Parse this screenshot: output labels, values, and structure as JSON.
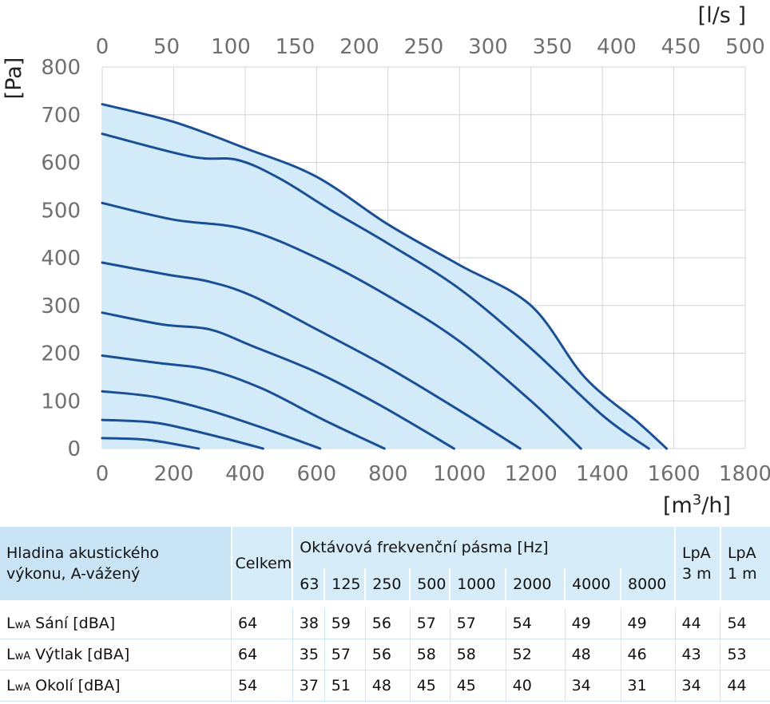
{
  "chart_data": {
    "type": "line",
    "x_axis": {
      "label_text": "[m",
      "label_sup": "3",
      "label_tail": "/h]",
      "range": [
        0,
        1800
      ],
      "ticks": [
        0,
        200,
        400,
        600,
        800,
        1000,
        1200,
        1400,
        1600,
        1800
      ]
    },
    "x2_axis": {
      "label": "[l/s ]",
      "range": [
        0,
        500
      ],
      "ticks": [
        0,
        50,
        100,
        150,
        200,
        250,
        300,
        350,
        400,
        450,
        500
      ]
    },
    "y_axis": {
      "label": "[Pa]",
      "range": [
        0,
        800
      ],
      "ticks": [
        0,
        100,
        200,
        300,
        400,
        500,
        600,
        700,
        800
      ]
    },
    "grid": true,
    "colors": {
      "curve": "#1a4f96",
      "fill": "#d3ebf8",
      "grid": "#d4d4d4"
    },
    "series": [
      {
        "x": [
          0,
          130,
          270
        ],
        "y": [
          22,
          18,
          0
        ]
      },
      {
        "x": [
          0,
          140,
          230,
          350,
          450
        ],
        "y": [
          60,
          55,
          42,
          20,
          0
        ]
      },
      {
        "x": [
          0,
          150,
          300,
          470,
          610
        ],
        "y": [
          120,
          108,
          80,
          38,
          0
        ]
      },
      {
        "x": [
          0,
          150,
          300,
          450,
          620,
          790
        ],
        "y": [
          195,
          180,
          165,
          125,
          60,
          0
        ]
      },
      {
        "x": [
          0,
          170,
          300,
          420,
          600,
          780,
          985
        ],
        "y": [
          285,
          260,
          250,
          215,
          160,
          90,
          0
        ]
      },
      {
        "x": [
          0,
          180,
          300,
          420,
          600,
          800,
          1000,
          1170
        ],
        "y": [
          390,
          365,
          350,
          320,
          250,
          170,
          80,
          0
        ]
      },
      {
        "x": [
          0,
          200,
          400,
          600,
          800,
          1000,
          1200,
          1340
        ],
        "y": [
          515,
          480,
          460,
          400,
          320,
          225,
          100,
          0
        ]
      },
      {
        "x": [
          0,
          250,
          380,
          500,
          640,
          800,
          1000,
          1200,
          1400,
          1530
        ],
        "y": [
          660,
          612,
          605,
          565,
          500,
          430,
          335,
          210,
          70,
          0
        ]
      },
      {
        "x": [
          0,
          200,
          400,
          600,
          800,
          1000,
          1200,
          1350,
          1500,
          1580
        ],
        "y": [
          722,
          685,
          630,
          570,
          470,
          385,
          300,
          150,
          55,
          0
        ]
      }
    ]
  },
  "table": {
    "header": {
      "title": "Hladina akustického výkonu, A-vážený",
      "title_line1": "Hladina akustického",
      "title_line2": "výkonu, A-vážený",
      "total": "Celkem",
      "octave_title": "Oktávová frekvenční pásma [Hz]",
      "bands": [
        "63",
        "125",
        "250",
        "500",
        "1000",
        "2000",
        "4000",
        "8000"
      ],
      "lpa3_line1": "LpA",
      "lpa3_line2": "3 m",
      "lpa1_line1": "LpA",
      "lpa1_line2": "1 m"
    },
    "rows": [
      {
        "prefix": "L",
        "sub": "wA",
        "label": " Sání [dBA]",
        "total": "64",
        "values": [
          "38",
          "59",
          "56",
          "57",
          "57",
          "54",
          "49",
          "49"
        ],
        "lpa3": "44",
        "lpa1": "54"
      },
      {
        "prefix": "L",
        "sub": "wA",
        "label": " Výtlak [dBA]",
        "total": "64",
        "values": [
          "35",
          "57",
          "56",
          "58",
          "58",
          "52",
          "48",
          "46"
        ],
        "lpa3": "43",
        "lpa1": "53"
      },
      {
        "prefix": "L",
        "sub": "wA",
        "label": " Okolí [dBA]",
        "total": "54",
        "values": [
          "37",
          "51",
          "48",
          "45",
          "45",
          "40",
          "34",
          "31"
        ],
        "lpa3": "34",
        "lpa1": "44"
      }
    ]
  }
}
